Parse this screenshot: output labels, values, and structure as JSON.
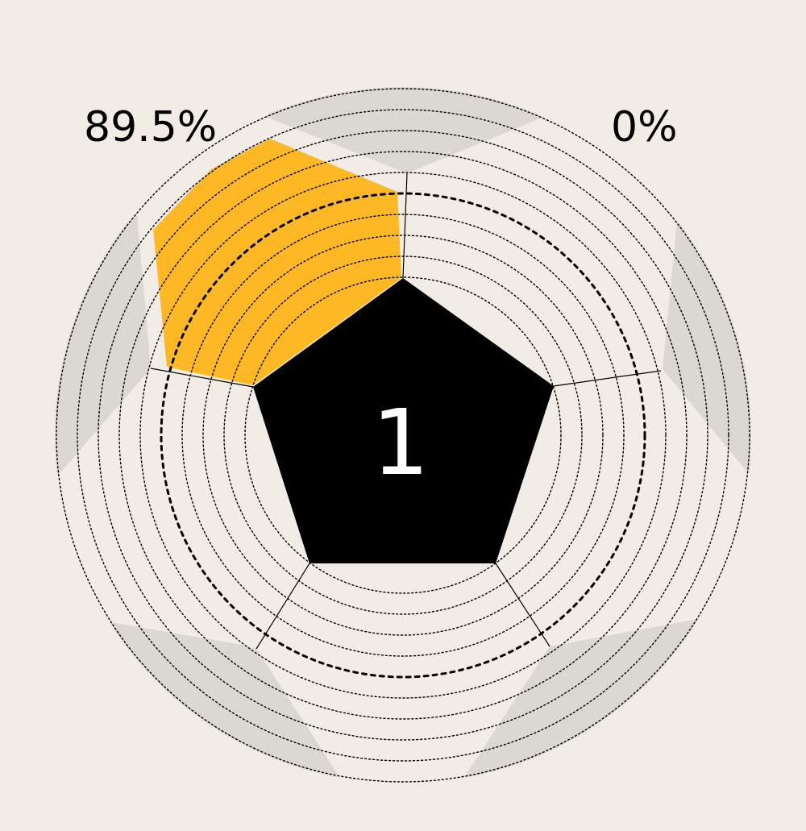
{
  "labels": {
    "left_percent": "89.5%",
    "right_percent": "0%",
    "center_number": "1"
  },
  "colors": {
    "background": "#f1ede6",
    "highlight": "#fdb823",
    "patch": "#dbd8d1",
    "pentagon": "#000000",
    "center_text": "#ffffff"
  },
  "segments": [
    {
      "position": "top-left",
      "percent": 89.5,
      "highlighted": true
    },
    {
      "position": "top-right",
      "percent": 0,
      "highlighted": false
    }
  ]
}
